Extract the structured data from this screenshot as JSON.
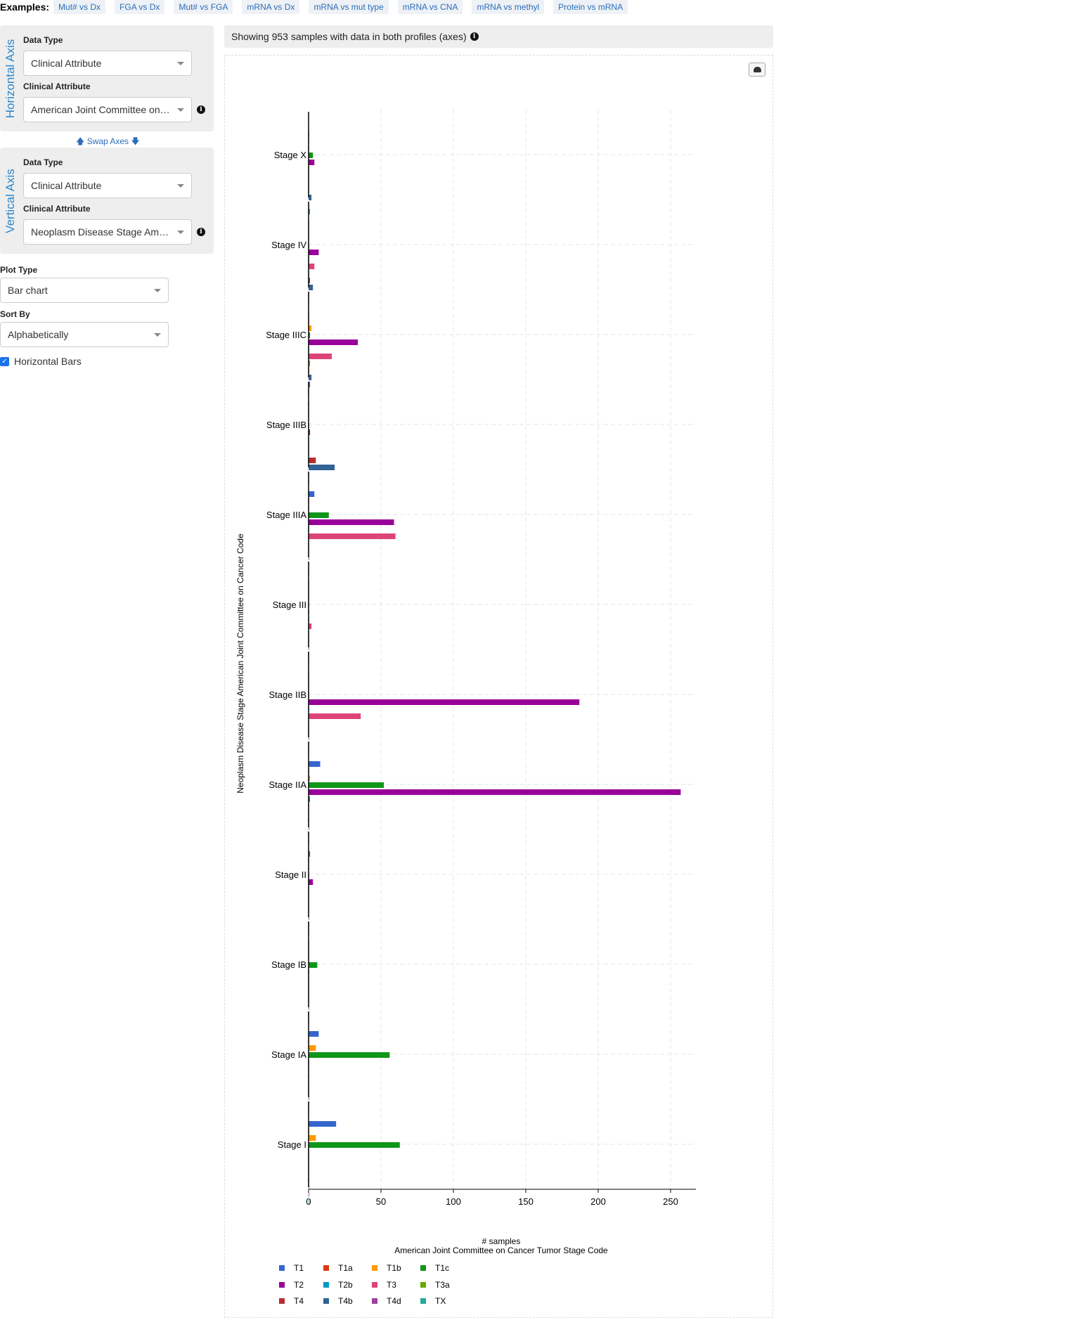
{
  "examples": {
    "label": "Examples:",
    "items": [
      "Mut# vs Dx",
      "FGA vs Dx",
      "Mut# vs FGA",
      "mRNA vs Dx",
      "mRNA vs mut type",
      "mRNA vs CNA",
      "mRNA vs methyl",
      "Protein vs mRNA"
    ]
  },
  "horizontal_axis": {
    "title": "Horizontal Axis",
    "data_type_label": "Data Type",
    "data_type_value": "Clinical Attribute",
    "clinical_attribute_label": "Clinical Attribute",
    "clinical_attribute_value": "American Joint Committee on Cancer Tumor Stage Code"
  },
  "swap_axes": "Swap Axes",
  "vertical_axis": {
    "title": "Vertical Axis",
    "data_type_label": "Data Type",
    "data_type_value": "Clinical Attribute",
    "clinical_attribute_label": "Clinical Attribute",
    "clinical_attribute_value": "Neoplasm Disease Stage American Joint Committee on Cancer Code"
  },
  "plot_type": {
    "label": "Plot Type",
    "value": "Bar chart"
  },
  "sort_by": {
    "label": "Sort By",
    "value": "Alphabetically"
  },
  "horizontal_bars": {
    "label": "Horizontal Bars",
    "checked": true
  },
  "info_text": "Showing 953 samples with data in both profiles (axes)",
  "icons": {
    "info": "info-icon",
    "download": "cloud-download-icon",
    "swap_up": "arrow-up-icon",
    "swap_down": "arrow-down-icon",
    "caret": "chevron-down-icon"
  },
  "chart_data": {
    "type": "bar",
    "orientation": "horizontal",
    "ylabel": "Neoplasm Disease Stage American Joint Committee on Cancer Code",
    "xlabel": "# samples",
    "legend_title": "American Joint Committee on Cancer Tumor Stage Code",
    "xlim": [
      0,
      268
    ],
    "xticks": [
      0,
      50,
      100,
      150,
      200,
      250
    ],
    "grid": true,
    "legend_position": "bottom",
    "categories": [
      "Stage X",
      "Stage IV",
      "Stage IIIC",
      "Stage IIIB",
      "Stage IIIA",
      "Stage III",
      "Stage IIB",
      "Stage IIA",
      "Stage II",
      "Stage IB",
      "Stage IA",
      "Stage I"
    ],
    "series": [
      {
        "name": "T1",
        "color": "#3366cc",
        "values": [
          0,
          0,
          0,
          0,
          4,
          0,
          0,
          8,
          1,
          0,
          7,
          19
        ]
      },
      {
        "name": "T1a",
        "color": "#dc3912",
        "values": [
          0,
          0,
          0,
          0,
          0,
          0,
          0,
          0,
          0,
          0,
          0,
          0
        ]
      },
      {
        "name": "T1b",
        "color": "#ff9900",
        "values": [
          0,
          0,
          2,
          0,
          0,
          0,
          0,
          1,
          0,
          0,
          5,
          5
        ]
      },
      {
        "name": "T1c",
        "color": "#109618",
        "values": [
          3,
          0,
          1,
          0,
          14,
          0,
          0,
          52,
          0,
          6,
          56,
          63
        ]
      },
      {
        "name": "T2",
        "color": "#990099",
        "values": [
          4,
          7,
          34,
          1,
          59,
          0,
          187,
          257,
          3,
          0,
          0,
          0
        ]
      },
      {
        "name": "T2b",
        "color": "#0099c6",
        "values": [
          0,
          0,
          0,
          0,
          0,
          0,
          0,
          1,
          0,
          0,
          0,
          0
        ]
      },
      {
        "name": "T3",
        "color": "#dd4477",
        "values": [
          0,
          4,
          16,
          0,
          60,
          2,
          36,
          0,
          0,
          0,
          0,
          0
        ]
      },
      {
        "name": "T3a",
        "color": "#66aa00",
        "values": [
          0,
          0,
          1,
          0,
          0,
          0,
          0,
          0,
          0,
          0,
          0,
          0
        ]
      },
      {
        "name": "T4",
        "color": "#b82e2e",
        "values": [
          0,
          1,
          0,
          5,
          0,
          0,
          0,
          0,
          0,
          0,
          0,
          0
        ]
      },
      {
        "name": "T4b",
        "color": "#316395",
        "values": [
          2,
          3,
          2,
          18,
          0,
          0,
          0,
          0,
          0,
          0,
          0,
          0
        ]
      },
      {
        "name": "T4d",
        "color": "#994499",
        "values": [
          0,
          0,
          1,
          0,
          0,
          0,
          0,
          0,
          0,
          0,
          0,
          0
        ]
      },
      {
        "name": "TX",
        "color": "#22aa99",
        "values": [
          1,
          0,
          0,
          0,
          0,
          0,
          0,
          0,
          0,
          0,
          0,
          0
        ]
      }
    ]
  }
}
